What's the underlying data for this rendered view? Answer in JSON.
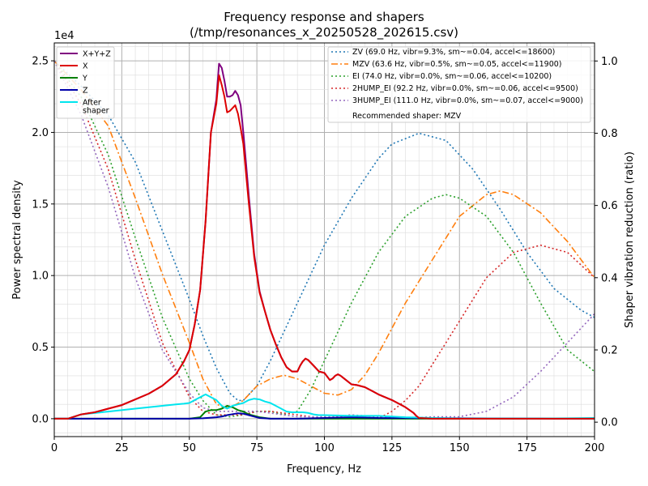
{
  "chart_data": {
    "type": "line",
    "title_line1": "Frequency response and shapers",
    "title_line2": "(/tmp/resonances_x_20250528_202615.csv)",
    "xlabel": "Frequency, Hz",
    "ylabel": "Power spectral density",
    "y2label": "Shaper vibration reduction (ratio)",
    "y_offset_label": "1e4",
    "xlim": [
      0,
      200
    ],
    "ylim": [
      -1250,
      26250
    ],
    "y2lim": [
      -0.04,
      1.05
    ],
    "x_ticks": [
      "0",
      "25",
      "50",
      "75",
      "100",
      "125",
      "150",
      "175",
      "200"
    ],
    "y_ticks": [
      "0.0",
      "0.5",
      "1.0",
      "1.5",
      "2.0",
      "2.5"
    ],
    "y2_ticks": [
      "0.0",
      "0.2",
      "0.4",
      "0.6",
      "0.8",
      "1.0"
    ],
    "grid": true,
    "psd_series": [
      {
        "name": "X+Y+Z",
        "color": "#800080",
        "x": [
          0,
          5,
          10,
          15,
          20,
          25,
          30,
          35,
          40,
          45,
          48,
          50,
          52,
          54,
          56,
          58,
          60,
          61,
          62,
          63,
          64,
          65,
          66,
          67,
          68,
          69,
          70,
          71,
          72,
          74,
          76,
          78,
          80,
          82,
          84,
          86,
          88,
          90,
          91,
          92,
          93,
          94,
          96,
          98,
          100,
          102,
          103,
          104,
          105,
          106,
          108,
          110,
          112,
          115,
          118,
          120,
          125,
          130,
          133,
          134,
          135,
          140,
          150,
          160,
          170,
          180,
          190,
          200
        ],
        "y": [
          0,
          0,
          300,
          450,
          700,
          950,
          1350,
          1750,
          2300,
          3100,
          4000,
          4800,
          6600,
          9000,
          13800,
          20000,
          22300,
          24800,
          24500,
          23600,
          22500,
          22500,
          22600,
          22900,
          22600,
          21900,
          20000,
          17800,
          15600,
          11500,
          8900,
          7500,
          6200,
          5200,
          4300,
          3600,
          3300,
          3300,
          3700,
          4000,
          4200,
          4100,
          3700,
          3300,
          3200,
          2700,
          2800,
          3000,
          3100,
          3000,
          2700,
          2400,
          2350,
          2200,
          1900,
          1700,
          1300,
          800,
          400,
          200,
          50,
          0,
          0,
          0,
          0,
          0,
          0,
          0
        ]
      },
      {
        "name": "X",
        "color": "#dd0000",
        "x": [
          0,
          5,
          10,
          15,
          20,
          25,
          30,
          35,
          40,
          45,
          48,
          50,
          52,
          54,
          56,
          58,
          60,
          61,
          62,
          63,
          64,
          65,
          66,
          67,
          68,
          69,
          70,
          71,
          72,
          74,
          76,
          78,
          80,
          82,
          84,
          86,
          88,
          90,
          91,
          92,
          93,
          94,
          96,
          98,
          100,
          102,
          103,
          104,
          105,
          106,
          108,
          110,
          112,
          115,
          118,
          120,
          125,
          130,
          133,
          134,
          135,
          140,
          150,
          160,
          170,
          180,
          190,
          200
        ],
        "y": [
          0,
          0,
          300,
          450,
          700,
          950,
          1350,
          1750,
          2300,
          3100,
          4000,
          4800,
          6600,
          9000,
          13800,
          20000,
          22000,
          24000,
          23300,
          22500,
          21400,
          21500,
          21700,
          21900,
          21300,
          20300,
          19200,
          17100,
          15100,
          11300,
          8800,
          7500,
          6200,
          5200,
          4300,
          3600,
          3300,
          3300,
          3700,
          4000,
          4200,
          4100,
          3700,
          3300,
          3200,
          2700,
          2800,
          3000,
          3100,
          3000,
          2700,
          2400,
          2350,
          2200,
          1900,
          1700,
          1300,
          800,
          400,
          200,
          50,
          0,
          0,
          0,
          0,
          0,
          0,
          0
        ]
      },
      {
        "name": "Y",
        "color": "#008000",
        "x": [
          0,
          50,
          54,
          56,
          58,
          60,
          62,
          64,
          66,
          68,
          70,
          72,
          74,
          76,
          80,
          90,
          100,
          200
        ],
        "y": [
          0,
          0,
          100,
          500,
          600,
          600,
          700,
          900,
          800,
          600,
          500,
          300,
          200,
          100,
          0,
          0,
          0,
          0
        ]
      },
      {
        "name": "Z",
        "color": "#0000aa",
        "x": [
          0,
          50,
          55,
          60,
          62,
          64,
          66,
          68,
          70,
          72,
          74,
          76,
          80,
          90,
          100,
          110,
          120,
          200
        ],
        "y": [
          0,
          0,
          30,
          100,
          150,
          250,
          320,
          380,
          350,
          250,
          150,
          50,
          0,
          0,
          50,
          100,
          50,
          0
        ]
      },
      {
        "name": "After\nshaper",
        "color": "#00e5ee",
        "x": [
          0,
          5,
          10,
          20,
          30,
          35,
          40,
          45,
          48,
          50,
          52,
          54,
          56,
          58,
          60,
          62,
          64,
          66,
          68,
          70,
          72,
          74,
          76,
          78,
          80,
          82,
          84,
          86,
          88,
          90,
          92,
          94,
          96,
          98,
          100,
          110,
          120,
          130,
          140,
          150,
          160,
          170,
          180,
          190,
          200
        ],
        "y": [
          0,
          0,
          300,
          500,
          700,
          800,
          900,
          1000,
          1050,
          1100,
          1300,
          1500,
          1700,
          1500,
          1300,
          900,
          700,
          900,
          1000,
          1100,
          1300,
          1400,
          1350,
          1200,
          1100,
          900,
          700,
          500,
          450,
          450,
          450,
          400,
          300,
          250,
          250,
          200,
          200,
          100,
          50,
          20,
          20,
          20,
          20,
          30,
          50
        ]
      }
    ],
    "shaper_series": [
      {
        "name": "ZV (69.0 Hz, vibr=9.3%, sm~=0.04, accel<=18600)",
        "color": "#1f77b4",
        "dash": "2,3",
        "x": [
          0,
          10,
          20,
          30,
          40,
          50,
          55,
          60,
          65,
          68,
          70,
          75,
          80,
          90,
          100,
          110,
          120,
          125,
          135,
          145,
          155,
          165,
          175,
          185,
          195,
          200
        ],
        "y": [
          1.0,
          0.93,
          0.85,
          0.72,
          0.53,
          0.34,
          0.24,
          0.15,
          0.08,
          0.06,
          0.06,
          0.1,
          0.17,
          0.33,
          0.49,
          0.62,
          0.73,
          0.77,
          0.8,
          0.78,
          0.7,
          0.59,
          0.47,
          0.37,
          0.31,
          0.29
        ]
      },
      {
        "name": "MZV (63.6 Hz, vibr=0.5%, sm~=0.05, accel<=11900)",
        "color": "#ff7f0e",
        "dash": "8,3,2,3",
        "x": [
          0,
          10,
          20,
          30,
          40,
          50,
          55,
          60,
          63,
          65,
          70,
          75,
          80,
          85,
          90,
          95,
          100,
          105,
          110,
          115,
          120,
          125,
          130,
          140,
          150,
          160,
          165,
          170,
          180,
          190,
          200
        ],
        "y": [
          1.0,
          0.92,
          0.82,
          0.62,
          0.41,
          0.22,
          0.12,
          0.05,
          0.04,
          0.04,
          0.06,
          0.1,
          0.12,
          0.13,
          0.12,
          0.1,
          0.08,
          0.075,
          0.09,
          0.13,
          0.19,
          0.26,
          0.33,
          0.45,
          0.57,
          0.63,
          0.64,
          0.63,
          0.58,
          0.5,
          0.4
        ]
      },
      {
        "name": "EI (74.0 Hz, vibr=0.0%, sm~=0.06, accel<=10200)",
        "color": "#2ca02c",
        "dash": "2,3",
        "x": [
          0,
          10,
          20,
          30,
          40,
          50,
          55,
          60,
          65,
          70,
          75,
          80,
          85,
          90,
          95,
          100,
          110,
          120,
          130,
          140,
          145,
          150,
          160,
          170,
          180,
          190,
          200
        ],
        "y": [
          1.0,
          0.9,
          0.74,
          0.51,
          0.29,
          0.12,
          0.06,
          0.02,
          0.015,
          0.02,
          0.03,
          0.03,
          0.02,
          0.03,
          0.09,
          0.17,
          0.33,
          0.47,
          0.57,
          0.62,
          0.63,
          0.62,
          0.57,
          0.47,
          0.33,
          0.2,
          0.14
        ]
      },
      {
        "name": "2HUMP_EI (92.2 Hz, vibr=0.0%, sm~=0.06, accel<=9500)",
        "color": "#d62728",
        "dash": "2,3",
        "x": [
          0,
          10,
          20,
          30,
          40,
          50,
          55,
          60,
          65,
          70,
          75,
          80,
          90,
          100,
          110,
          115,
          120,
          125,
          130,
          135,
          140,
          150,
          160,
          170,
          180,
          190,
          200
        ],
        "y": [
          1.0,
          0.88,
          0.7,
          0.45,
          0.22,
          0.07,
          0.03,
          0.02,
          0.02,
          0.02,
          0.03,
          0.03,
          0.02,
          0.01,
          0.02,
          0.01,
          0.01,
          0.03,
          0.06,
          0.1,
          0.16,
          0.28,
          0.4,
          0.47,
          0.49,
          0.47,
          0.4
        ]
      },
      {
        "name": "3HUMP_EI (111.0 Hz, vibr=0.0%, sm~=0.07, accel<=9000)",
        "color": "#9467bd",
        "dash": "2,3",
        "x": [
          0,
          10,
          20,
          30,
          40,
          50,
          55,
          60,
          65,
          70,
          75,
          80,
          90,
          100,
          105,
          110,
          120,
          130,
          140,
          150,
          160,
          170,
          180,
          190,
          200
        ],
        "y": [
          1.0,
          0.85,
          0.65,
          0.4,
          0.2,
          0.08,
          0.04,
          0.03,
          0.03,
          0.03,
          0.03,
          0.025,
          0.015,
          0.015,
          0.015,
          0.02,
          0.015,
          0.01,
          0.015,
          0.015,
          0.03,
          0.07,
          0.14,
          0.22,
          0.3
        ]
      }
    ],
    "legend_right_footer": "Recommended shaper: MZV"
  }
}
